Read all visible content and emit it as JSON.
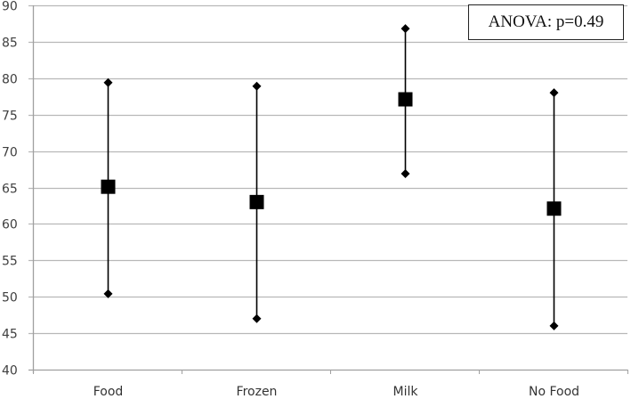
{
  "chart_data": {
    "type": "errorbar",
    "title": "",
    "xlabel": "",
    "ylabel": "",
    "categories": [
      "Food",
      "Frozen",
      "Milk",
      "No Food"
    ],
    "series": [
      {
        "name": "mean",
        "marker": "square",
        "values": [
          65.1,
          63.0,
          77.1,
          62.1
        ]
      },
      {
        "name": "upper",
        "marker": "diamond",
        "values": [
          79.4,
          78.9,
          86.8,
          78.0
        ]
      },
      {
        "name": "lower",
        "marker": "diamond",
        "values": [
          50.4,
          47.0,
          66.9,
          46.0
        ]
      }
    ],
    "ylim": [
      40,
      90
    ],
    "yticks": [
      40,
      45,
      50,
      55,
      60,
      65,
      70,
      75,
      80,
      85,
      90
    ],
    "grid": true,
    "legend": null,
    "annotations": [
      "ANOVA: p=0.49"
    ]
  },
  "annotation": {
    "text": "ANOVA: p=0.49"
  },
  "colors": {
    "grid": "#b8b8b8",
    "axis": "#a0a0a0",
    "marker": "#000000",
    "tick_label": "#404040"
  }
}
